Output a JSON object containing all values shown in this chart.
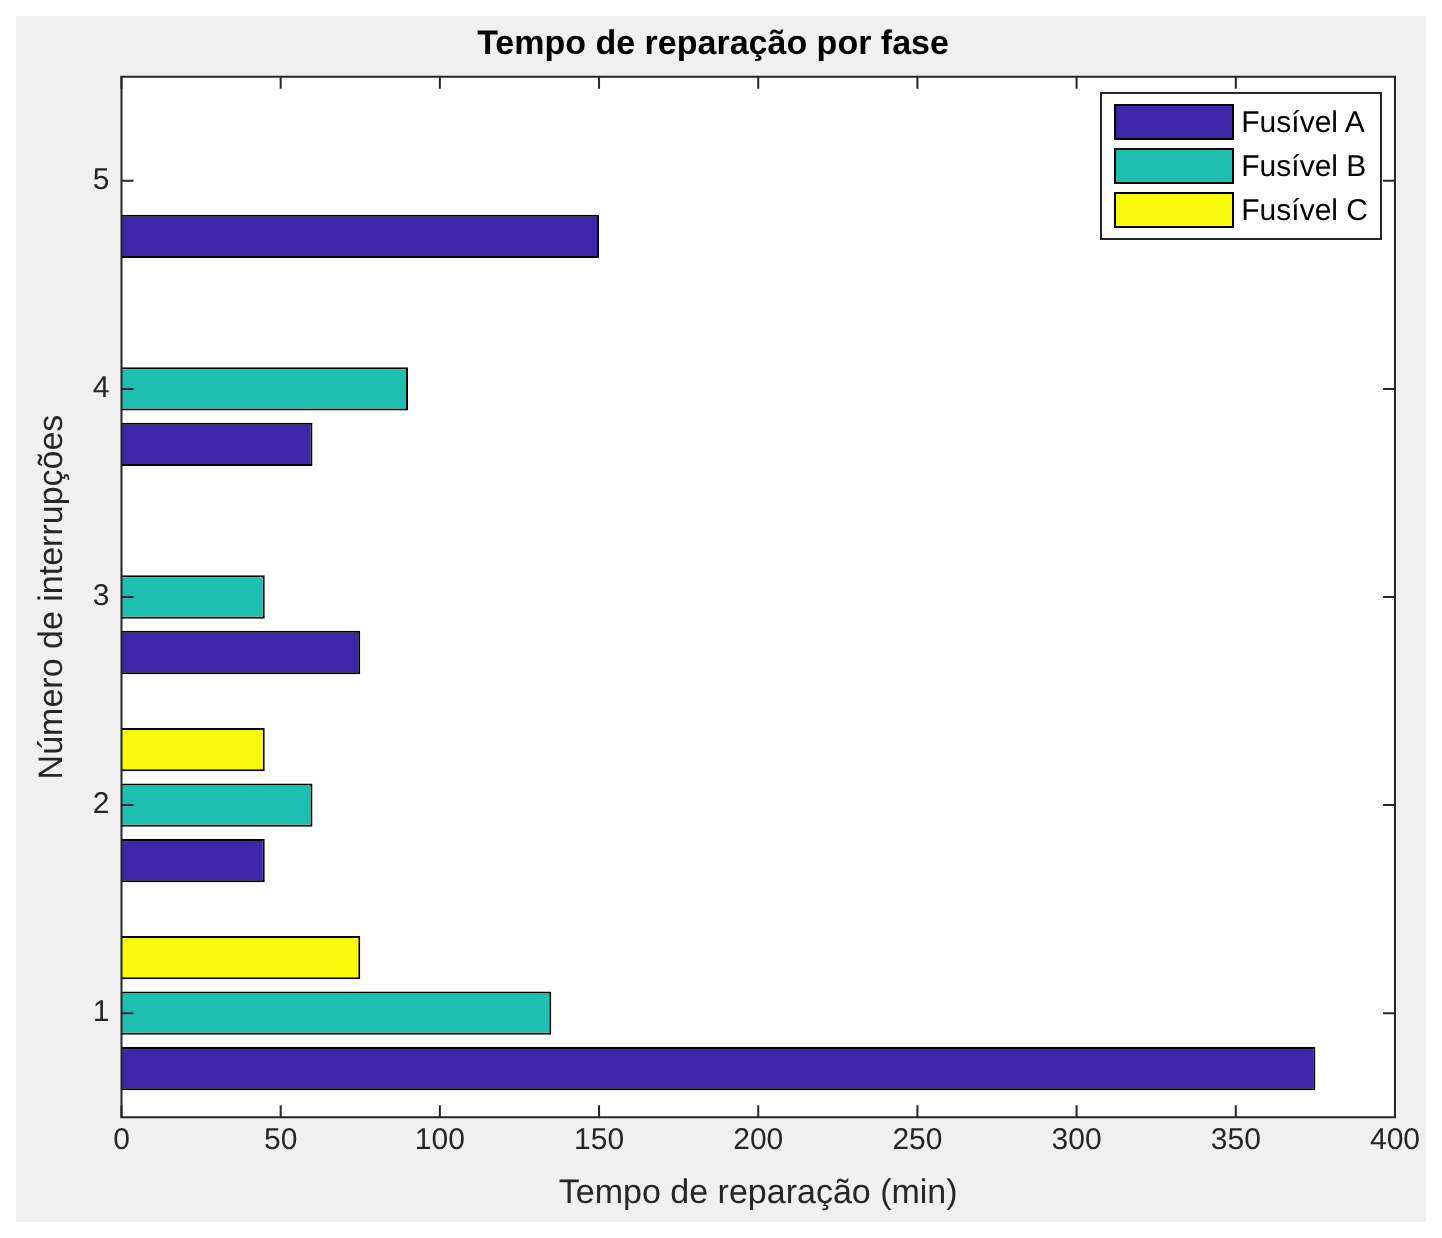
{
  "chart_data": {
    "type": "bar",
    "orientation": "horizontal",
    "title": "Tempo de reparação por fase",
    "xlabel": "Tempo de reparação (min)",
    "ylabel": "Número de interrupções",
    "categories": [
      "5",
      "4",
      "3",
      "2",
      "1"
    ],
    "series": [
      {
        "name": "Fusível A",
        "color": "#3e26a8",
        "values": [
          150,
          60,
          75,
          45,
          375
        ]
      },
      {
        "name": "Fusível B",
        "color": "#1fbfb0",
        "values": [
          null,
          90,
          45,
          60,
          135
        ]
      },
      {
        "name": "Fusível C",
        "color": "#f9fb0e",
        "values": [
          null,
          null,
          null,
          45,
          75
        ]
      }
    ],
    "xlim": [
      0,
      400
    ],
    "xticks": [
      0,
      50,
      100,
      150,
      200,
      250,
      300,
      350,
      400
    ],
    "grid": false,
    "legend": "top right"
  }
}
